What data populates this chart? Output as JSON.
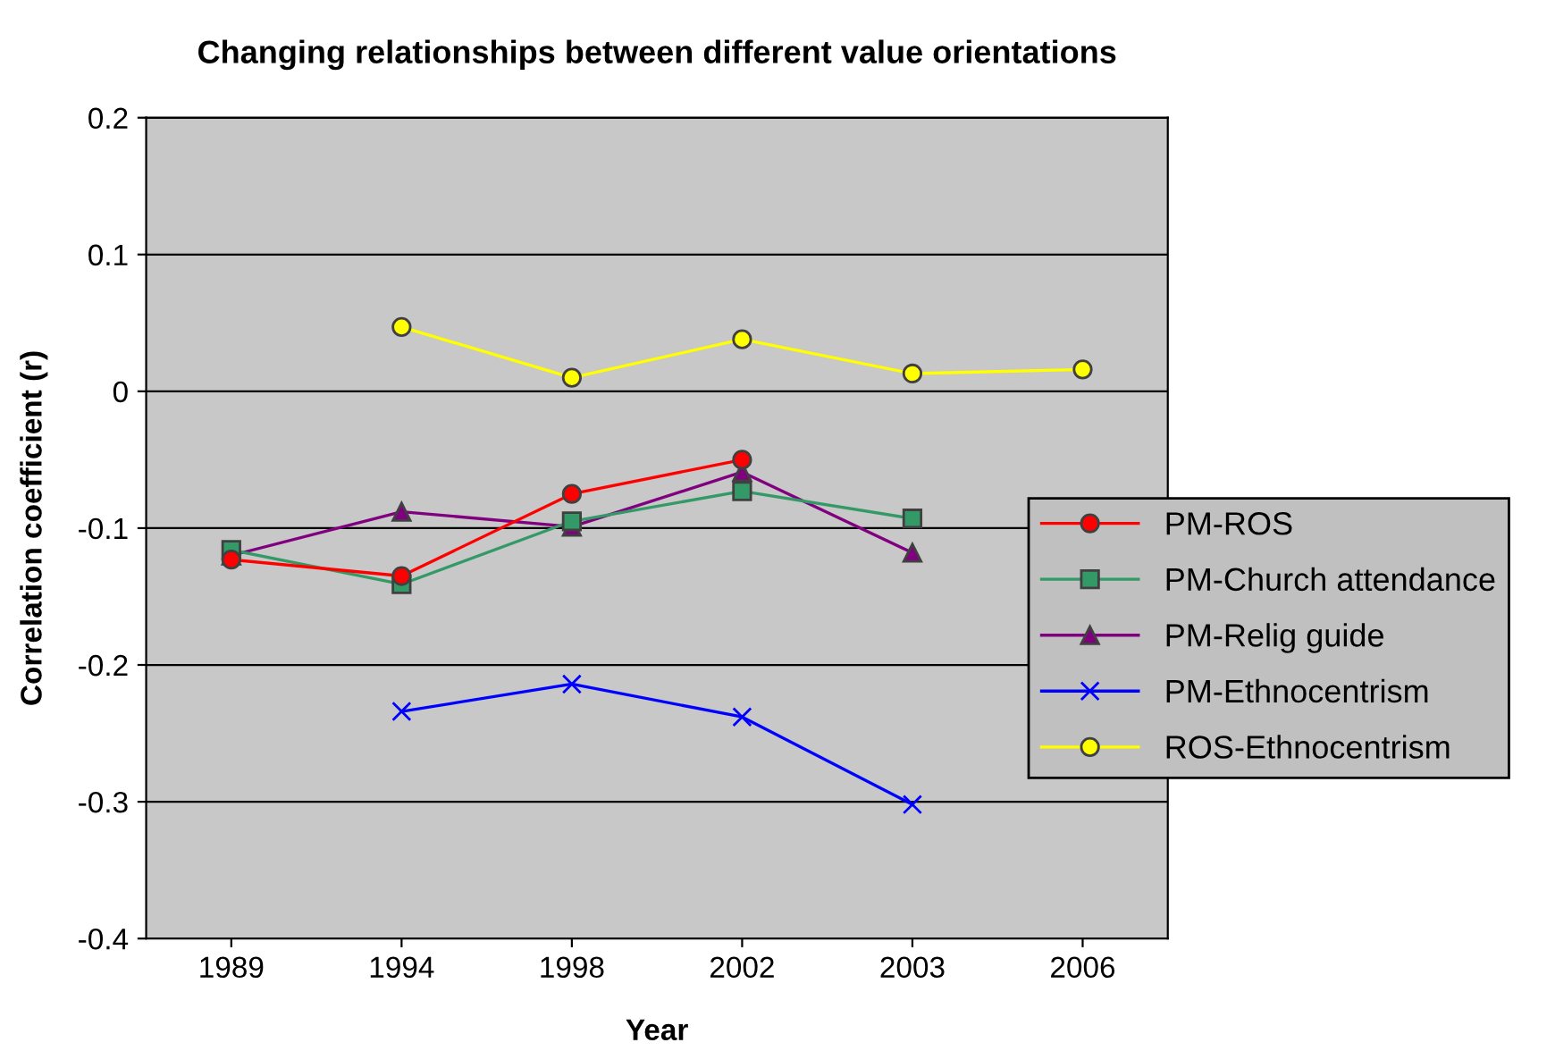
{
  "chart_data": {
    "type": "line",
    "title": "Changing relationships between different value orientations",
    "xlabel": "Year",
    "ylabel": "Correlation coefficient (r)",
    "categories": [
      "1989",
      "1994",
      "1998",
      "2002",
      "2003",
      "2006"
    ],
    "series": [
      {
        "name": "PM-ROS",
        "color": "#ff0000",
        "marker": "circle",
        "values": [
          -0.123,
          -0.135,
          -0.075,
          -0.05,
          null,
          null
        ]
      },
      {
        "name": "PM-Church attendance",
        "color": "#339966",
        "marker": "square",
        "values": [
          -0.116,
          -0.141,
          -0.095,
          -0.073,
          -0.093,
          null
        ]
      },
      {
        "name": "PM-Relig guide",
        "color": "#800080",
        "marker": "triangle",
        "values": [
          -0.12,
          -0.088,
          -0.099,
          -0.059,
          -0.118,
          null
        ]
      },
      {
        "name": "PM-Ethnocentrism",
        "color": "#0000ff",
        "marker": "cross",
        "values": [
          null,
          -0.234,
          -0.214,
          -0.238,
          -0.302,
          null
        ]
      },
      {
        "name": "ROS-Ethnocentrism",
        "color": "#ffff00",
        "marker": "circle",
        "values": [
          null,
          0.047,
          0.01,
          0.038,
          0.013,
          0.016
        ]
      }
    ],
    "ylim": [
      -0.4,
      0.2
    ],
    "yticks": [
      -0.4,
      -0.3,
      -0.2,
      -0.1,
      0,
      0.1,
      0.2
    ],
    "grid": "y",
    "legend": "right"
  }
}
